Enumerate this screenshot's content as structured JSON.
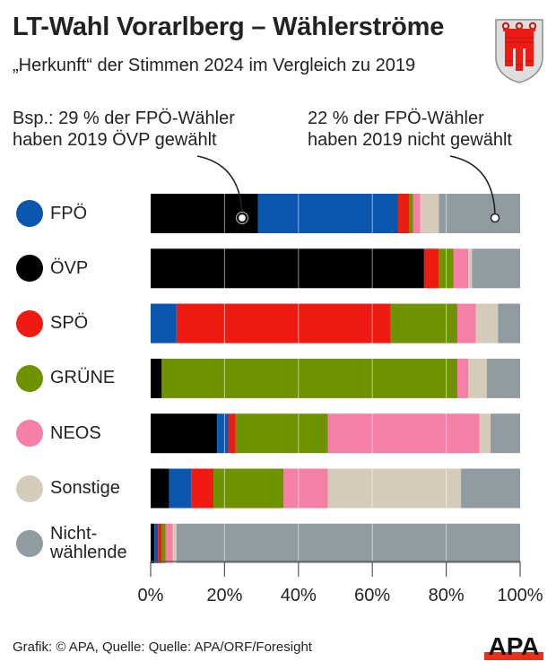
{
  "header": {
    "title": "LT-Wahl Vorarlberg – Wählerströme",
    "subtitle": "„Herkunft“ der Stimmen 2024 im Vergleich zu 2019",
    "crest_icon": "vorarlberg-coat-of-arms-icon"
  },
  "annotations": {
    "left": {
      "line1": "Bsp.: 29 % der FPÖ-Wähler",
      "line2": "haben 2019 ÖVP gewählt"
    },
    "right": {
      "line1": "22 % der FPÖ-Wähler",
      "line2": "haben 2019 nicht gewählt"
    }
  },
  "footer": {
    "credit": "Grafik: © APA, Quelle: Quelle: APA/ORF/Foresight",
    "logo_text": "APA"
  },
  "colors": {
    "ÖVP": "#000000",
    "FPÖ": "#0b57b0",
    "SPÖ": "#ef1a12",
    "GRÜNE": "#6f9200",
    "NEOS": "#f67fa6",
    "Sonstige": "#d4cbba",
    "Nichtwählende": "#919ba2",
    "apa_red": "#e8311a"
  },
  "chart_data": {
    "type": "bar",
    "orientation": "horizontal-stacked-100",
    "title": "LT-Wahl Vorarlberg – Wählerströme",
    "subtitle": "„Herkunft“ der Stimmen 2024 im Vergleich zu 2019",
    "xlabel": "",
    "ylabel": "",
    "xlim": [
      0,
      100
    ],
    "xticks": [
      "0%",
      "20%",
      "40%",
      "60%",
      "80%",
      "100%"
    ],
    "xtick_values": [
      0,
      20,
      40,
      60,
      80,
      100
    ],
    "grid": true,
    "categories": [
      {
        "label": "FPÖ",
        "label_lines": [
          "FPÖ"
        ],
        "color": "#0b57b0"
      },
      {
        "label": "ÖVP",
        "label_lines": [
          "ÖVP"
        ],
        "color": "#000000"
      },
      {
        "label": "SPÖ",
        "label_lines": [
          "SPÖ"
        ],
        "color": "#ef1a12"
      },
      {
        "label": "GRÜNE",
        "label_lines": [
          "GRÜNE"
        ],
        "color": "#6f9200"
      },
      {
        "label": "NEOS",
        "label_lines": [
          "NEOS"
        ],
        "color": "#f67fa6"
      },
      {
        "label": "Sonstige",
        "label_lines": [
          "Sonstige"
        ],
        "color": "#d4cbba"
      },
      {
        "label": "Nichtwählende",
        "label_lines": [
          "Nicht-",
          "wählende"
        ],
        "color": "#919ba2"
      }
    ],
    "series": [
      {
        "name": "ÖVP (2019)",
        "color": "#000000",
        "values": [
          29,
          74,
          0,
          3,
          18,
          5,
          1
        ]
      },
      {
        "name": "FPÖ (2019)",
        "color": "#0b57b0",
        "values": [
          38,
          0,
          7,
          0,
          3,
          6,
          1
        ]
      },
      {
        "name": "SPÖ (2019)",
        "color": "#ef1a12",
        "values": [
          3,
          4,
          58,
          0,
          2,
          6,
          1
        ]
      },
      {
        "name": "GRÜNE (2019)",
        "color": "#6f9200",
        "values": [
          1,
          4,
          18,
          80,
          25,
          19,
          1
        ]
      },
      {
        "name": "NEOS (2019)",
        "color": "#f67fa6",
        "values": [
          2,
          4,
          5,
          3,
          41,
          12,
          2
        ]
      },
      {
        "name": "Sonstige (2019)",
        "color": "#d4cbba",
        "values": [
          5,
          1,
          6,
          5,
          3,
          36,
          1
        ]
      },
      {
        "name": "Nichtwählende (2019)",
        "color": "#919ba2",
        "values": [
          22,
          13,
          6,
          9,
          8,
          16,
          93
        ]
      }
    ],
    "callouts": [
      {
        "category": "FPÖ",
        "series": "ÖVP (2019)",
        "value": 29,
        "text": "Bsp.: 29 % der FPÖ-Wähler haben 2019 ÖVP gewählt"
      },
      {
        "category": "FPÖ",
        "series": "Nichtwählende (2019)",
        "value": 22,
        "text": "22 % der FPÖ-Wähler haben 2019 nicht gewählt"
      }
    ],
    "legend": "left"
  }
}
